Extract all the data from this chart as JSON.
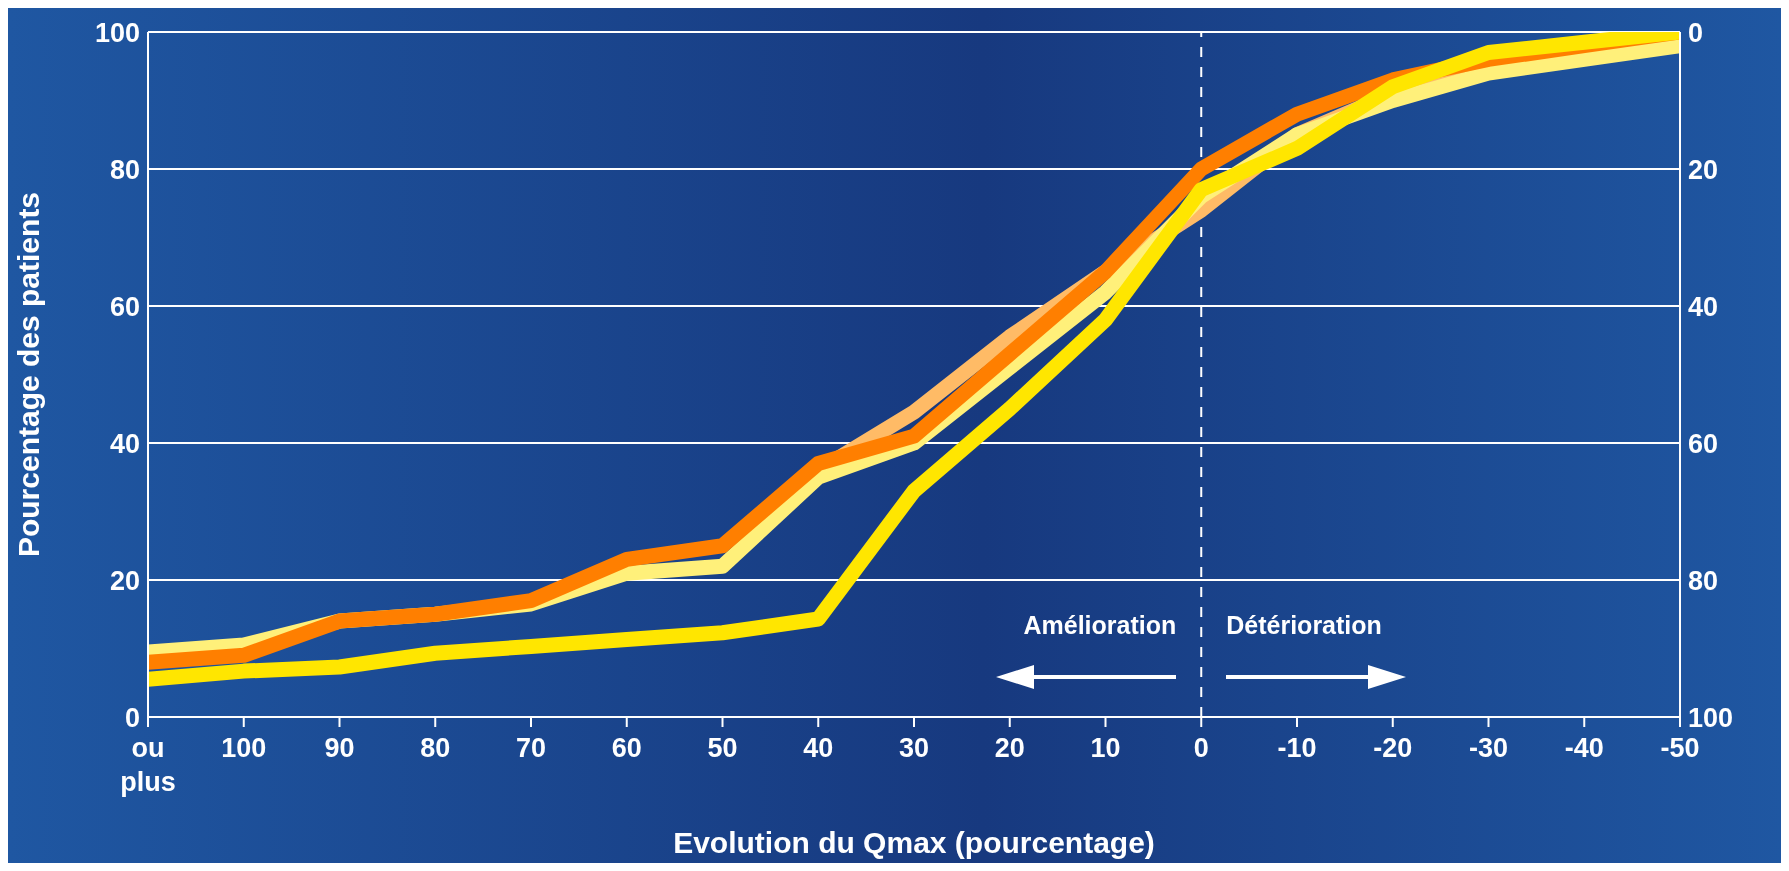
{
  "chart_data": {
    "type": "line",
    "xlabel": "Evolution du Qmax (pourcentage)",
    "ylabel": "Pourcentage des patients",
    "categories": [
      "ou plus",
      "100",
      "90",
      "80",
      "70",
      "60",
      "50",
      "40",
      "30",
      "20",
      "10",
      "0",
      "-10",
      "-20",
      "-30",
      "-40",
      "-50"
    ],
    "series": [
      {
        "color": "#ffbb66",
        "values": [
          null,
          null,
          null,
          null,
          null,
          null,
          null,
          36,
          44.5,
          55.5,
          65,
          74,
          85,
          91,
          95,
          97,
          99
        ]
      },
      {
        "color": "#fff07a",
        "values": [
          9.5,
          10.5,
          14,
          15,
          16.5,
          21,
          22,
          35,
          40,
          51,
          62,
          76,
          85,
          90,
          94,
          96,
          98
        ]
      },
      {
        "color": "#ff7f00",
        "values": [
          8,
          9,
          14,
          15,
          17,
          23,
          25,
          37,
          41,
          53,
          65,
          80,
          88,
          93,
          96,
          98,
          100
        ]
      },
      {
        "color": "#ffe600",
        "values": [
          5.5,
          6.7,
          7.3,
          9.3,
          10.3,
          11.3,
          12.3,
          14.3,
          33,
          45,
          58,
          77,
          83,
          92,
          97,
          98.5,
          100
        ]
      }
    ],
    "ylim": [
      0,
      100
    ],
    "yticks": [
      0,
      20,
      40,
      60,
      80,
      100
    ],
    "y2lim": [
      100,
      0
    ],
    "y2ticks": [
      0,
      20,
      40,
      60,
      80,
      100
    ],
    "grid": "y",
    "marker": "none",
    "line_style": "solid",
    "ref_lines": [
      {
        "axis": "x",
        "value": "0",
        "color": "#ffffff",
        "line_style": "dashed"
      }
    ],
    "annotations": [
      "Amélioration",
      "Détérioration"
    ]
  }
}
